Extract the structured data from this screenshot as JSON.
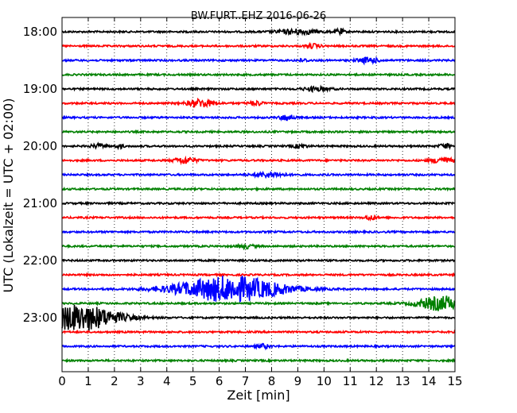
{
  "chart_data": {
    "type": "line",
    "title": "BW.FURT..EHZ 2016-06-26",
    "xlabel": "Zeit  [min]",
    "ylabel": "UTC (Lokalzeit = UTC + 02:00)",
    "xlim": [
      0,
      15
    ],
    "x_ticks": [
      "0",
      "1",
      "2",
      "3",
      "4",
      "5",
      "6",
      "7",
      "8",
      "9",
      "10",
      "11",
      "12",
      "13",
      "14",
      "15"
    ],
    "y_tick_labels": [
      "18:00",
      "19:00",
      "20:00",
      "21:00",
      "22:00",
      "23:00"
    ],
    "grid": "vertical-dotted",
    "trace_colors": [
      "#000000",
      "#ff0000",
      "#0000ff",
      "#008000"
    ],
    "trace_count": 24,
    "events": [
      {
        "trace": 0,
        "time": 9.0,
        "amplitude": 3,
        "duration": 1.6
      },
      {
        "trace": 0,
        "time": 10.6,
        "amplitude": 4,
        "duration": 0.3
      },
      {
        "trace": 1,
        "time": 9.6,
        "amplitude": 2.5,
        "duration": 0.5
      },
      {
        "trace": 2,
        "time": 11.7,
        "amplitude": 3.5,
        "duration": 0.8
      },
      {
        "trace": 2,
        "time": 9.2,
        "amplitude": 1.5,
        "duration": 0.5
      },
      {
        "trace": 4,
        "time": 9.7,
        "amplitude": 2.5,
        "duration": 1.0
      },
      {
        "trace": 5,
        "time": 5.3,
        "amplitude": 5,
        "duration": 1.0
      },
      {
        "trace": 5,
        "time": 7.4,
        "amplitude": 3,
        "duration": 0.5
      },
      {
        "trace": 6,
        "time": 8.6,
        "amplitude": 4,
        "duration": 0.5
      },
      {
        "trace": 8,
        "time": 1.4,
        "amplitude": 2.5,
        "duration": 0.6
      },
      {
        "trace": 8,
        "time": 2.2,
        "amplitude": 2.5,
        "duration": 0.3
      },
      {
        "trace": 8,
        "time": 9.1,
        "amplitude": 2.5,
        "duration": 0.5
      },
      {
        "trace": 8,
        "time": 14.6,
        "amplitude": 3,
        "duration": 0.4
      },
      {
        "trace": 9,
        "time": 4.7,
        "amplitude": 4,
        "duration": 0.8
      },
      {
        "trace": 9,
        "time": 14.5,
        "amplitude": 4,
        "duration": 0.8
      },
      {
        "trace": 10,
        "time": 7.9,
        "amplitude": 3,
        "duration": 1.2
      },
      {
        "trace": 13,
        "time": 11.8,
        "amplitude": 3,
        "duration": 0.4
      },
      {
        "trace": 15,
        "time": 7.0,
        "amplitude": 2.5,
        "duration": 0.6
      },
      {
        "trace": 18,
        "time": 6.4,
        "amplitude": 16,
        "duration": 4.0
      },
      {
        "trace": 19,
        "time": 14.5,
        "amplitude": 9,
        "duration": 1.8
      },
      {
        "trace": 20,
        "time": 0.3,
        "amplitude": 12,
        "duration": 2.5
      },
      {
        "trace": 20,
        "time": 1.3,
        "amplitude": 7,
        "duration": 2.5
      },
      {
        "trace": 22,
        "time": 7.7,
        "amplitude": 2.5,
        "duration": 0.5
      }
    ]
  }
}
